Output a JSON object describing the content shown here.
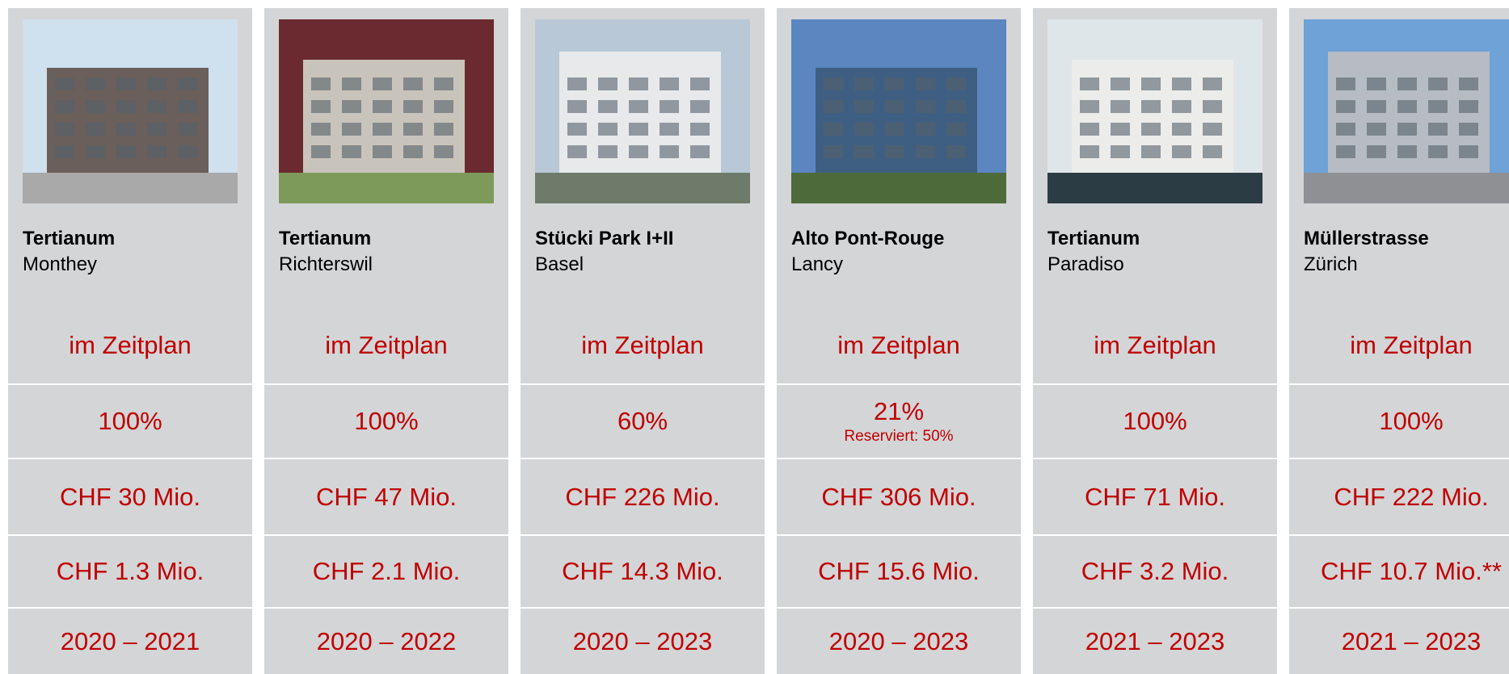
{
  "projects": [
    {
      "name": "Tertianum",
      "location": "Monthey",
      "status": "im Zeitplan",
      "occupancy": "100%",
      "investment": "CHF 30 Mio.",
      "income": "CHF 1.3 Mio.",
      "period": "2020 – 2021"
    },
    {
      "name": "Tertianum",
      "location": "Richterswil",
      "status": "im Zeitplan",
      "occupancy": "100%",
      "investment": "CHF 47 Mio.",
      "income": "CHF 2.1 Mio.",
      "period": "2020 – 2022"
    },
    {
      "name": "Stücki Park I+II",
      "location": "Basel",
      "status": "im Zeitplan",
      "occupancy": "60%",
      "investment": "CHF 226 Mio.",
      "income": "CHF 14.3 Mio.",
      "period": "2020 – 2023"
    },
    {
      "name": "Alto Pont-Rouge",
      "location": "Lancy",
      "status": "im Zeitplan",
      "occupancy": "21%",
      "occupancy_note": "Reserviert: 50%",
      "investment": "CHF 306 Mio.",
      "income": "CHF 15.6 Mio.",
      "period": "2020 – 2023"
    },
    {
      "name": "Tertianum",
      "location": "Paradiso",
      "status": "im Zeitplan",
      "occupancy": "100%",
      "investment": "CHF 71 Mio.",
      "income": "CHF 3.2 Mio.",
      "period": "2021 – 2023"
    },
    {
      "name": "Müllerstrasse",
      "location": "Zürich",
      "status": "im Zeitplan",
      "occupancy": "100%",
      "investment": "CHF 222 Mio.",
      "income": "CHF 10.7 Mio.**",
      "period": "2021 – 2023"
    }
  ]
}
